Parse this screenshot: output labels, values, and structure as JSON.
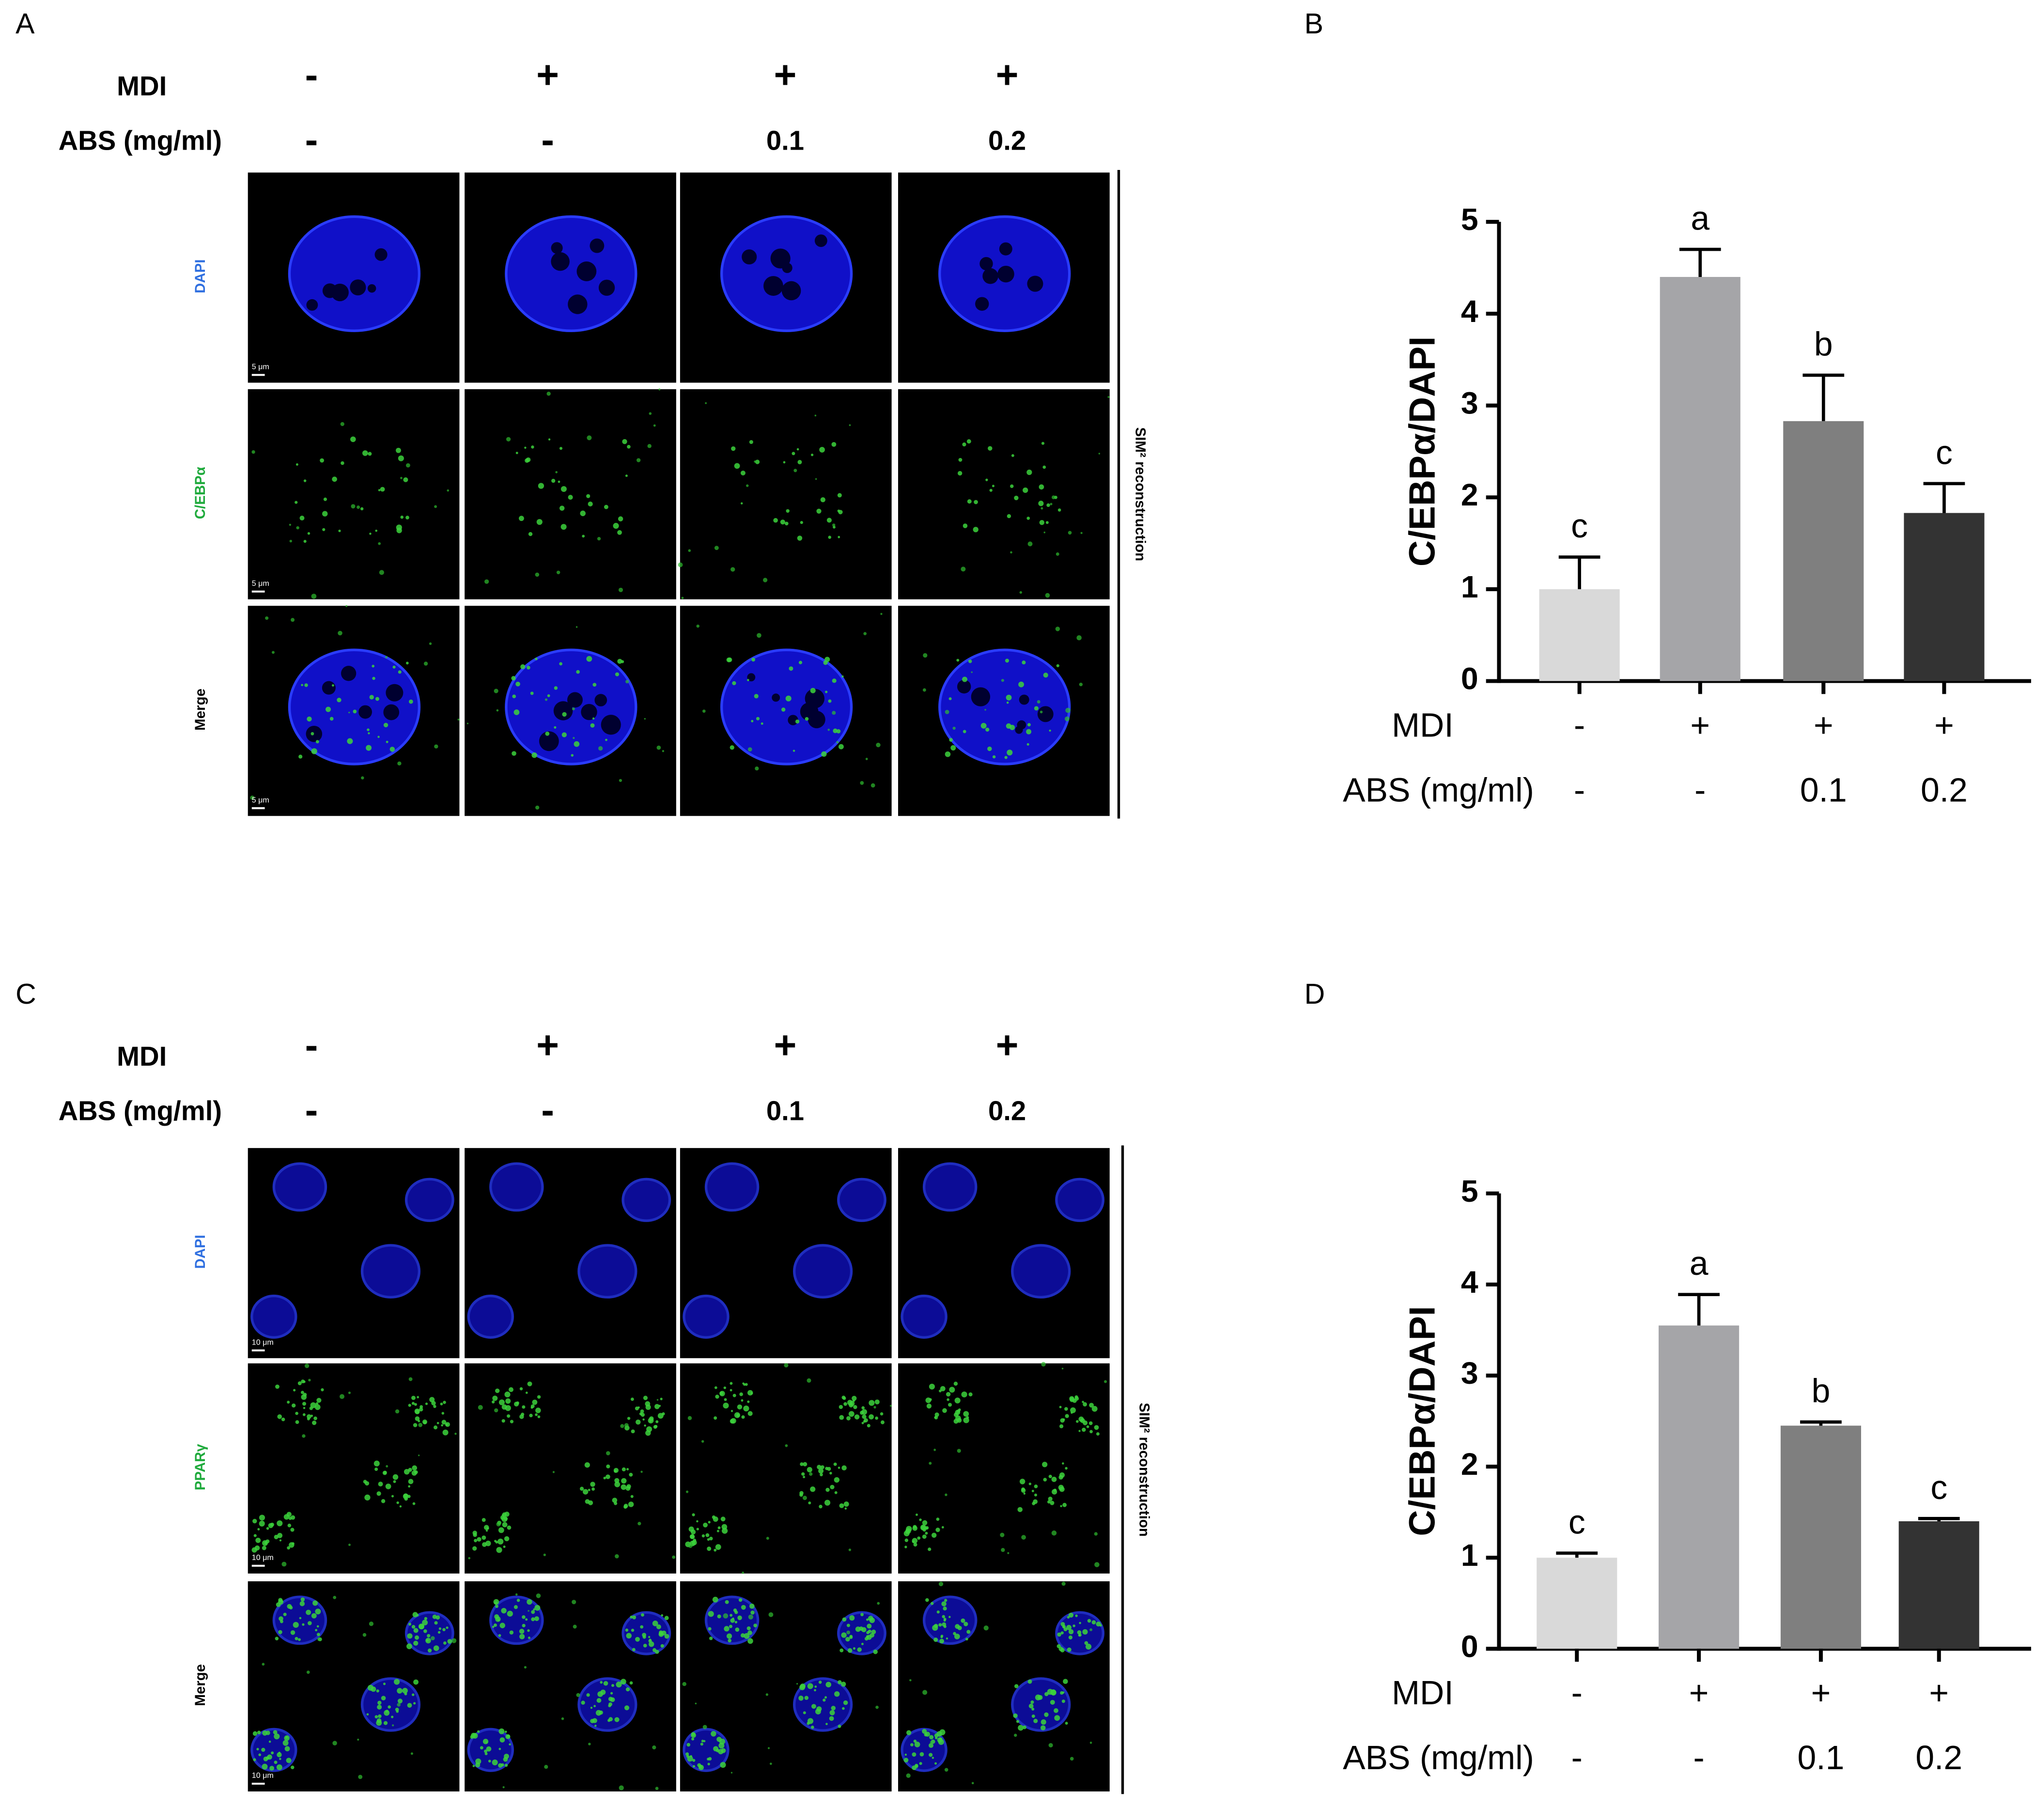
{
  "panels": [
    {
      "label": "A",
      "mdi_label": "MDI",
      "abs_label": "ABS  (mg/ml)",
      "mdi": [
        "-",
        "+",
        "+",
        "+"
      ],
      "abs": [
        "-",
        "-",
        "0.1",
        "0.2"
      ],
      "rows": [
        "DAPI",
        "C/EBPα",
        "Merge"
      ],
      "row_colors": [
        "#2f6fe0",
        "#1faa3c",
        "#000000"
      ],
      "scale_bar": "5 μm",
      "side_label": "SIM² reconstruction"
    },
    {
      "label": "C",
      "mdi_label": "MDI",
      "abs_label": "ABS  (mg/ml)",
      "mdi": [
        "-",
        "+",
        "+",
        "+"
      ],
      "abs": [
        "-",
        "-",
        "0.1",
        "0.2"
      ],
      "rows": [
        "DAPI",
        "PPARγ",
        "Merge"
      ],
      "row_colors": [
        "#2f6fe0",
        "#1faa3c",
        "#000000"
      ],
      "scale_bar": "10 μm",
      "side_label": "SIM² reconstruction"
    }
  ],
  "chart_data": [
    {
      "type": "bar",
      "label": "B",
      "ylabel": "C/EBPα/DAPI",
      "values": [
        1,
        4.4,
        2.83,
        1.83
      ],
      "errors": [
        0.35,
        0.3,
        0.5,
        0.32
      ],
      "letters": [
        "c",
        "a",
        "b",
        "c"
      ],
      "colors": [
        "#d9d9d9",
        "#a5a5a8",
        "#7f7f7f",
        "#333333"
      ],
      "ylim": [
        0,
        5
      ],
      "yticks": [
        0,
        1,
        2,
        3,
        4,
        5
      ],
      "conditions": [
        {
          "name": "MDI",
          "values": [
            "-",
            "+",
            "+",
            "+"
          ]
        },
        {
          "name": "ABS (mg/ml)",
          "values": [
            "-",
            "-",
            "0.1",
            "0.2"
          ]
        }
      ]
    },
    {
      "type": "bar",
      "label": "D",
      "ylabel": "C/EBPα/DAPI",
      "values": [
        1,
        3.55,
        2.45,
        1.4
      ],
      "errors": [
        0.05,
        0.34,
        0.04,
        0.03
      ],
      "letters": [
        "c",
        "a",
        "b",
        "c"
      ],
      "colors": [
        "#d9d9d9",
        "#a5a5a8",
        "#7f7f7f",
        "#333333"
      ],
      "ylim": [
        0,
        5
      ],
      "yticks": [
        0,
        1,
        2,
        3,
        4,
        5
      ],
      "conditions": [
        {
          "name": "MDI",
          "values": [
            "-",
            "+",
            "+",
            "+"
          ]
        },
        {
          "name": "ABS (mg/ml)",
          "values": [
            "-",
            "-",
            "0.1",
            "0.2"
          ]
        }
      ]
    }
  ]
}
